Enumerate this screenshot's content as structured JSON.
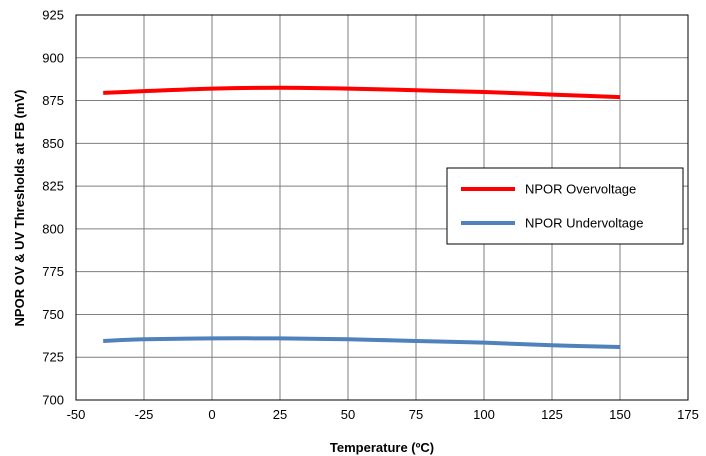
{
  "chart_data": {
    "type": "line",
    "title": "",
    "xlabel": "Temperature (ºC)",
    "ylabel": "NPOR OV & UV Thresholds at FB (mV)",
    "xlim": [
      -50,
      175
    ],
    "ylim": [
      700,
      925
    ],
    "xticks": [
      -50,
      -25,
      0,
      25,
      50,
      75,
      100,
      125,
      150,
      175
    ],
    "yticks": [
      700,
      725,
      750,
      775,
      800,
      825,
      850,
      875,
      900,
      925
    ],
    "grid": true,
    "legend_position": "right",
    "series": [
      {
        "name": "NPOR Overvoltage",
        "color": "#ff0000",
        "x": [
          -40,
          -25,
          0,
          25,
          50,
          75,
          100,
          125,
          150
        ],
        "y": [
          879.5,
          880.5,
          882,
          882.5,
          882,
          881,
          880,
          878.5,
          877
        ]
      },
      {
        "name": "NPOR Undervoltage",
        "color": "#4f81bd",
        "x": [
          -40,
          -25,
          0,
          25,
          50,
          75,
          100,
          125,
          150
        ],
        "y": [
          734.5,
          735.5,
          736,
          736,
          735.5,
          734.5,
          733.5,
          732,
          731
        ]
      }
    ]
  }
}
